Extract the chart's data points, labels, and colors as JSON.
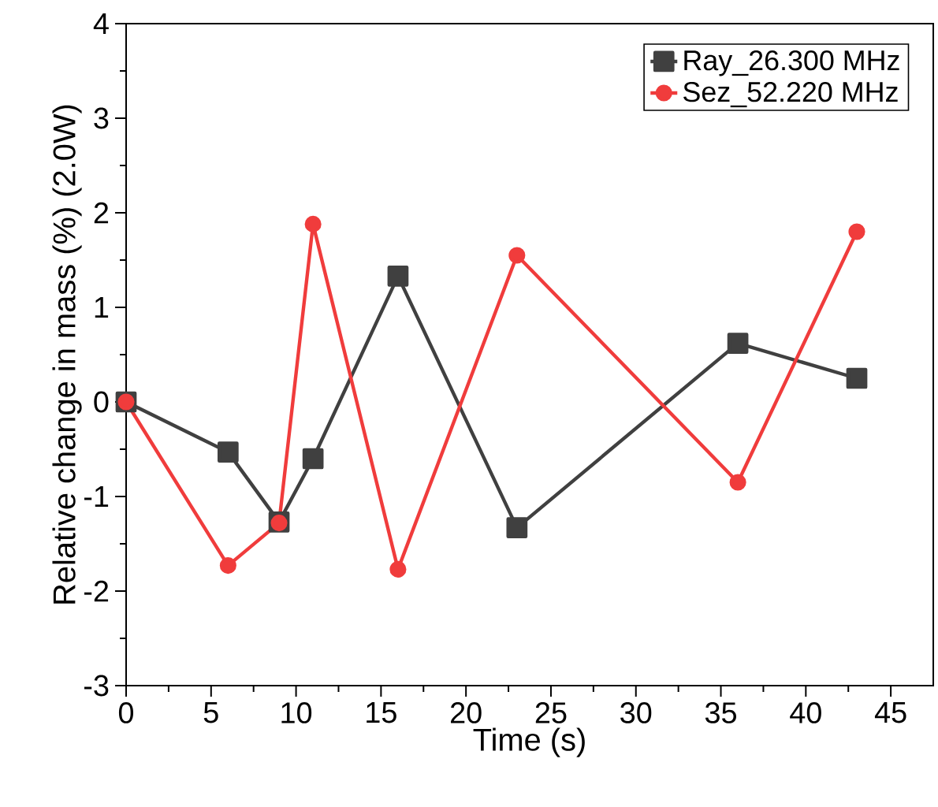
{
  "chart_data": {
    "type": "line",
    "xlabel": "Time (s)",
    "ylabel": "Relative change in mass (%) (2.0W)",
    "xlim": [
      0,
      47.5
    ],
    "ylim": [
      -3,
      4
    ],
    "xticks": [
      0,
      5,
      10,
      15,
      20,
      25,
      30,
      35,
      40,
      45
    ],
    "yticks": [
      -3,
      -2,
      -1,
      0,
      1,
      2,
      3,
      4
    ],
    "legend": "top right",
    "grid": false,
    "line_style": "solid",
    "series": [
      {
        "name": "Ray_26.300 MHz",
        "color": "#404040",
        "marker": "square",
        "x": [
          0,
          6,
          9,
          11,
          16,
          23,
          36,
          43
        ],
        "values": [
          0,
          -0.53,
          -1.27,
          -0.6,
          1.33,
          -1.33,
          0.62,
          0.25
        ]
      },
      {
        "name": "Sez_52.220 MHz",
        "color": "#f03c3c",
        "marker": "circle",
        "x": [
          0,
          6,
          9,
          11,
          16,
          23,
          36,
          43
        ],
        "values": [
          0,
          -1.73,
          -1.28,
          1.88,
          -1.77,
          1.55,
          -0.85,
          1.8
        ]
      }
    ]
  }
}
